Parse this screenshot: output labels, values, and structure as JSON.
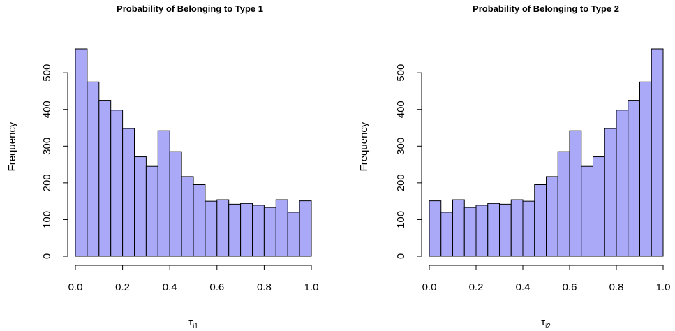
{
  "chart_data": [
    {
      "type": "bar",
      "title": "Probability of Belonging to Type 1",
      "xlabel_main": "τ",
      "xlabel_sub": "i1",
      "ylabel": "Frequency",
      "xlim": [
        0,
        1
      ],
      "ylim": [
        0,
        565
      ],
      "x_ticks": [
        "0.0",
        "0.2",
        "0.4",
        "0.6",
        "0.8",
        "1.0"
      ],
      "y_ticks": [
        "0",
        "100",
        "200",
        "300",
        "400",
        "500"
      ],
      "bin_width": 0.05,
      "values": [
        565,
        475,
        425,
        398,
        348,
        271,
        245,
        342,
        285,
        217,
        195,
        150,
        154,
        142,
        144,
        139,
        133,
        154,
        120,
        151
      ]
    },
    {
      "type": "bar",
      "title": "Probability of Belonging to Type 2",
      "xlabel_main": "τ",
      "xlabel_sub": "i2",
      "ylabel": "Frequency",
      "xlim": [
        0,
        1
      ],
      "ylim": [
        0,
        565
      ],
      "x_ticks": [
        "0.0",
        "0.2",
        "0.4",
        "0.6",
        "0.8",
        "1.0"
      ],
      "y_ticks": [
        "0",
        "100",
        "200",
        "300",
        "400",
        "500"
      ],
      "bin_width": 0.05,
      "values": [
        151,
        120,
        154,
        133,
        139,
        144,
        142,
        154,
        150,
        195,
        217,
        285,
        342,
        245,
        271,
        348,
        398,
        425,
        475,
        565
      ]
    }
  ]
}
